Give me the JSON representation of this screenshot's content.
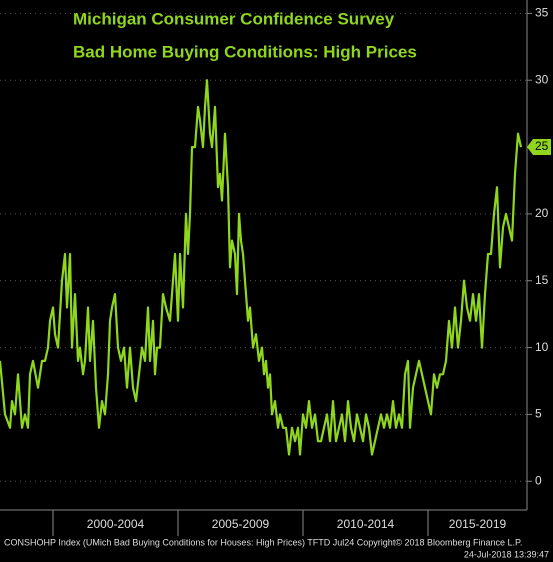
{
  "chart_data": {
    "type": "line",
    "title": "Michigan Consumer Confidence Survey",
    "subtitle": "Bad Home Buying Conditions: High Prices",
    "footer": "CONSHOHP Index (UMich Bad Buying Conditions for Houses: High Prices) TFTD Jul24  Copyright© 2018 Bloomberg Finance L.P.",
    "timestamp": "24-Jul-2018 13:39:47",
    "color": "#8fd61c",
    "grid": true,
    "xlim": [
      1997.88,
      2018.96
    ],
    "xticks": [
      {
        "value": 2002.5,
        "label": "2000-2004"
      },
      {
        "value": 2007.5,
        "label": "2005-2009"
      },
      {
        "value": 2012.5,
        "label": "2010-2014"
      },
      {
        "value": 2017.5,
        "label": "2015-2019"
      }
    ],
    "ylim": [
      -2,
      36
    ],
    "yticks": [
      0,
      5,
      10,
      15,
      20,
      30,
      35
    ],
    "x": [
      1997.88,
      1998.08,
      1998.28,
      1998.36,
      1998.48,
      1998.6,
      1998.76,
      1998.88,
      1999.0,
      1999.08,
      1999.2,
      1999.4,
      1999.56,
      1999.68,
      1999.8,
      1999.88,
      2000.0,
      2000.08,
      2000.2,
      2000.36,
      2000.48,
      2000.56,
      2000.68,
      2000.76,
      2000.88,
      2001.0,
      2001.08,
      2001.2,
      2001.28,
      2001.4,
      2001.48,
      2001.6,
      2001.72,
      2001.84,
      2001.96,
      2002.08,
      2002.2,
      2002.28,
      2002.36,
      2002.48,
      2002.6,
      2002.72,
      2002.84,
      2002.96,
      2003.08,
      2003.2,
      2003.32,
      2003.44,
      2003.56,
      2003.68,
      2003.8,
      2003.88,
      2004.0,
      2004.08,
      2004.16,
      2004.28,
      2004.4,
      2004.52,
      2004.68,
      2004.8,
      2004.88,
      2005.0,
      2005.08,
      2005.2,
      2005.32,
      2005.4,
      2005.48,
      2005.56,
      2005.68,
      2005.8,
      2005.88,
      2006.0,
      2006.08,
      2006.16,
      2006.28,
      2006.36,
      2006.48,
      2006.6,
      2006.68,
      2006.76,
      2006.88,
      2007.0,
      2007.08,
      2007.16,
      2007.28,
      2007.36,
      2007.44,
      2007.52,
      2007.6,
      2007.68,
      2007.8,
      2007.88,
      2008.0,
      2008.12,
      2008.24,
      2008.36,
      2008.44,
      2008.52,
      2008.6,
      2008.68,
      2008.76,
      2008.88,
      2009.0,
      2009.08,
      2009.2,
      2009.32,
      2009.44,
      2009.56,
      2009.68,
      2009.8,
      2009.88,
      2010.0,
      2010.12,
      2010.24,
      2010.36,
      2010.48,
      2010.6,
      2010.72,
      2010.84,
      2010.96,
      2011.08,
      2011.2,
      2011.32,
      2011.44,
      2011.56,
      2011.68,
      2011.8,
      2011.92,
      2012.04,
      2012.16,
      2012.28,
      2012.4,
      2012.52,
      2012.64,
      2012.76,
      2012.88,
      2013.0,
      2013.12,
      2013.24,
      2013.36,
      2013.48,
      2013.6,
      2013.72,
      2013.84,
      2013.96,
      2014.08,
      2014.2,
      2014.28,
      2014.4,
      2014.52,
      2014.64,
      2014.76,
      2014.88,
      2015.0,
      2015.12,
      2015.24,
      2015.36,
      2015.48,
      2015.6,
      2015.72,
      2015.84,
      2015.96,
      2016.08,
      2016.2,
      2016.32,
      2016.44,
      2016.56,
      2016.68,
      2016.8,
      2016.92,
      2017.04,
      2017.16,
      2017.28,
      2017.4,
      2017.52,
      2017.64,
      2017.76,
      2017.88,
      2018.0,
      2018.12,
      2018.24,
      2018.36,
      2018.48,
      2018.6,
      2018.72
    ],
    "values": [
      9,
      5,
      4,
      6,
      5,
      8,
      4,
      5,
      4,
      8,
      9,
      7,
      9,
      9,
      10,
      12,
      13,
      11,
      10,
      15,
      17,
      13,
      17,
      10,
      14,
      9,
      10,
      8,
      9,
      13,
      9,
      12,
      7,
      4,
      6,
      5,
      8,
      12,
      13,
      14,
      10,
      9,
      10,
      7,
      10,
      7,
      6,
      8,
      10,
      9,
      13,
      9,
      12,
      8,
      10,
      10,
      14,
      13,
      12,
      15,
      17,
      12,
      17,
      13,
      20,
      17,
      20,
      25,
      25,
      28,
      27,
      25,
      28,
      30,
      26,
      25,
      28,
      22,
      23,
      21,
      26,
      22,
      16,
      18,
      17,
      14,
      20,
      18,
      17,
      15,
      12,
      13,
      10,
      11,
      9,
      10,
      8,
      9,
      7,
      8,
      5,
      6,
      4,
      5,
      4,
      4,
      2,
      4,
      3,
      4,
      2,
      5,
      4,
      6,
      4,
      5,
      3,
      3,
      4,
      5,
      3,
      6,
      3,
      4,
      5,
      3,
      6,
      4,
      3,
      5,
      4,
      3,
      5,
      4,
      2,
      3,
      4,
      5,
      4,
      5,
      4,
      6,
      4,
      5,
      4,
      8,
      9,
      4,
      7,
      8,
      9,
      8,
      7,
      6,
      5,
      8,
      7,
      8,
      8,
      9,
      12,
      10,
      13,
      10,
      12,
      15,
      13,
      12,
      14,
      12,
      14,
      10,
      14,
      17,
      17,
      20,
      22,
      16,
      19,
      20,
      19,
      18,
      23,
      26,
      25
    ]
  }
}
